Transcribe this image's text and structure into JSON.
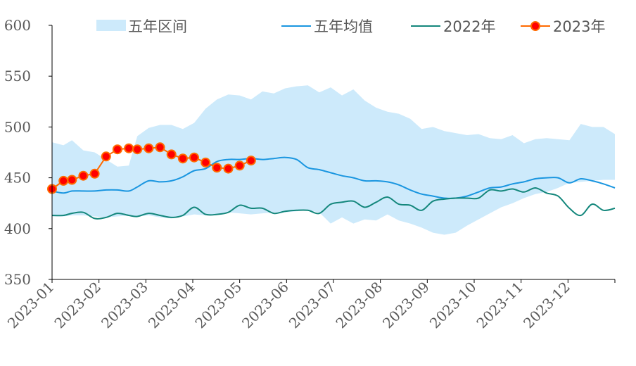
{
  "chart_data": {
    "type": "line",
    "ylim": [
      350,
      600
    ],
    "yticks": [
      350,
      400,
      450,
      500,
      550,
      600
    ],
    "x_tick_labels": [
      "2023-01",
      "2023-02",
      "2023-03",
      "2023-04",
      "2023-05",
      "2023-06",
      "2023-07",
      "2023-08",
      "2023-09",
      "2023-10",
      "2023-11",
      "2023-12"
    ],
    "legend": {
      "range_label": "五年区间",
      "avg_label": "五年均值",
      "y2022_label": "2022年",
      "y2023_label": "2023年"
    },
    "colors": {
      "band": "#cdeafb",
      "avg": "#1a96e0",
      "y2022": "#14877c",
      "y2023_line": "#ff6a00",
      "y2023_marker": "#ff0000",
      "axis": "#000000"
    },
    "five_year_range": {
      "upper": [
        [
          1,
          485
        ],
        [
          5,
          482
        ],
        [
          8,
          487
        ],
        [
          12,
          477
        ],
        [
          16,
          475
        ],
        [
          20,
          468
        ],
        [
          24,
          461
        ],
        [
          28,
          462
        ],
        [
          31,
          491
        ],
        [
          35,
          499
        ],
        [
          39,
          502
        ],
        [
          43,
          502
        ],
        [
          47,
          498
        ],
        [
          51,
          504
        ],
        [
          55,
          518
        ],
        [
          59,
          527
        ],
        [
          63,
          532
        ],
        [
          67,
          531
        ],
        [
          71,
          527
        ],
        [
          75,
          535
        ],
        [
          79,
          533
        ],
        [
          83,
          538
        ],
        [
          87,
          540
        ],
        [
          91,
          541
        ],
        [
          95,
          534
        ],
        [
          99,
          539
        ],
        [
          103,
          531
        ],
        [
          107,
          537
        ],
        [
          111,
          526
        ],
        [
          115,
          519
        ],
        [
          119,
          515
        ],
        [
          123,
          513
        ],
        [
          127,
          508
        ],
        [
          131,
          498
        ],
        [
          135,
          500
        ],
        [
          139,
          496
        ],
        [
          143,
          494
        ],
        [
          147,
          492
        ],
        [
          151,
          493
        ],
        [
          155,
          489
        ],
        [
          159,
          488
        ],
        [
          163,
          492
        ],
        [
          167,
          484
        ],
        [
          171,
          488
        ],
        [
          175,
          489
        ],
        [
          179,
          488
        ],
        [
          183,
          487
        ],
        [
          187,
          503
        ],
        [
          191,
          500
        ],
        [
          195,
          500
        ],
        [
          199,
          493
        ]
      ],
      "lower": [
        [
          1,
          412
        ],
        [
          5,
          412
        ],
        [
          8,
          413
        ],
        [
          12,
          413
        ],
        [
          16,
          412
        ],
        [
          20,
          411
        ],
        [
          24,
          412
        ],
        [
          28,
          413
        ],
        [
          31,
          412
        ],
        [
          35,
          413
        ],
        [
          39,
          411
        ],
        [
          43,
          410
        ],
        [
          47,
          412
        ],
        [
          51,
          414
        ],
        [
          55,
          413
        ],
        [
          59,
          414
        ],
        [
          63,
          416
        ],
        [
          67,
          415
        ],
        [
          71,
          414
        ],
        [
          75,
          415
        ],
        [
          79,
          416
        ],
        [
          83,
          416
        ],
        [
          87,
          417
        ],
        [
          91,
          418
        ],
        [
          95,
          416
        ],
        [
          99,
          405
        ],
        [
          103,
          411
        ],
        [
          107,
          405
        ],
        [
          111,
          409
        ],
        [
          115,
          408
        ],
        [
          119,
          414
        ],
        [
          123,
          408
        ],
        [
          127,
          405
        ],
        [
          131,
          401
        ],
        [
          135,
          396
        ],
        [
          139,
          394
        ],
        [
          143,
          396
        ],
        [
          147,
          403
        ],
        [
          151,
          409
        ],
        [
          155,
          415
        ],
        [
          159,
          421
        ],
        [
          163,
          425
        ],
        [
          167,
          430
        ],
        [
          171,
          434
        ],
        [
          175,
          436
        ],
        [
          179,
          440
        ],
        [
          183,
          445
        ],
        [
          187,
          446
        ],
        [
          191,
          447
        ],
        [
          195,
          448
        ],
        [
          199,
          448
        ]
      ]
    },
    "five_year_avg": [
      [
        1,
        437
      ],
      [
        5,
        435
      ],
      [
        8,
        437
      ],
      [
        12,
        437
      ],
      [
        16,
        437
      ],
      [
        20,
        438
      ],
      [
        24,
        438
      ],
      [
        28,
        437
      ],
      [
        31,
        441
      ],
      [
        35,
        447
      ],
      [
        39,
        446
      ],
      [
        43,
        447
      ],
      [
        47,
        451
      ],
      [
        51,
        457
      ],
      [
        55,
        459
      ],
      [
        59,
        466
      ],
      [
        63,
        468
      ],
      [
        67,
        468
      ],
      [
        71,
        469
      ],
      [
        75,
        468
      ],
      [
        79,
        469
      ],
      [
        83,
        470
      ],
      [
        87,
        468
      ],
      [
        91,
        460
      ],
      [
        95,
        458
      ],
      [
        99,
        455
      ],
      [
        103,
        452
      ],
      [
        107,
        450
      ],
      [
        111,
        447
      ],
      [
        115,
        447
      ],
      [
        119,
        446
      ],
      [
        123,
        443
      ],
      [
        127,
        438
      ],
      [
        131,
        434
      ],
      [
        135,
        432
      ],
      [
        139,
        430
      ],
      [
        143,
        430
      ],
      [
        147,
        432
      ],
      [
        151,
        436
      ],
      [
        155,
        440
      ],
      [
        159,
        441
      ],
      [
        163,
        444
      ],
      [
        167,
        446
      ],
      [
        171,
        449
      ],
      [
        175,
        450
      ],
      [
        179,
        450
      ],
      [
        183,
        445
      ],
      [
        187,
        449
      ],
      [
        191,
        447
      ],
      [
        195,
        444
      ],
      [
        199,
        440
      ]
    ],
    "y2022": [
      [
        1,
        413
      ],
      [
        5,
        413
      ],
      [
        8,
        415
      ],
      [
        12,
        416
      ],
      [
        16,
        410
      ],
      [
        20,
        411
      ],
      [
        24,
        415
      ],
      [
        28,
        413
      ],
      [
        31,
        412
      ],
      [
        35,
        415
      ],
      [
        39,
        413
      ],
      [
        43,
        411
      ],
      [
        47,
        413
      ],
      [
        51,
        421
      ],
      [
        55,
        414
      ],
      [
        59,
        414
      ],
      [
        63,
        416
      ],
      [
        67,
        423
      ],
      [
        71,
        420
      ],
      [
        75,
        420
      ],
      [
        79,
        415
      ],
      [
        83,
        417
      ],
      [
        87,
        418
      ],
      [
        91,
        418
      ],
      [
        95,
        415
      ],
      [
        99,
        424
      ],
      [
        103,
        426
      ],
      [
        107,
        427
      ],
      [
        111,
        421
      ],
      [
        115,
        426
      ],
      [
        119,
        431
      ],
      [
        123,
        424
      ],
      [
        127,
        423
      ],
      [
        131,
        418
      ],
      [
        135,
        427
      ],
      [
        139,
        429
      ],
      [
        143,
        430
      ],
      [
        147,
        430
      ],
      [
        151,
        430
      ],
      [
        155,
        438
      ],
      [
        159,
        437
      ],
      [
        163,
        439
      ],
      [
        167,
        436
      ],
      [
        171,
        440
      ],
      [
        175,
        435
      ],
      [
        179,
        432
      ],
      [
        183,
        420
      ],
      [
        187,
        413
      ],
      [
        191,
        424
      ],
      [
        195,
        418
      ],
      [
        199,
        420
      ]
    ],
    "y2023": [
      [
        1,
        439
      ],
      [
        5,
        447
      ],
      [
        8,
        448
      ],
      [
        12,
        452
      ],
      [
        16,
        454
      ],
      [
        20,
        471
      ],
      [
        24,
        478
      ],
      [
        28,
        479
      ],
      [
        31,
        478
      ],
      [
        35,
        479
      ],
      [
        39,
        480
      ],
      [
        43,
        473
      ],
      [
        47,
        469
      ],
      [
        51,
        470
      ],
      [
        55,
        465
      ],
      [
        59,
        460
      ],
      [
        63,
        459
      ],
      [
        67,
        462
      ],
      [
        71,
        467
      ]
    ],
    "x_domain": [
      1,
      199
    ]
  }
}
